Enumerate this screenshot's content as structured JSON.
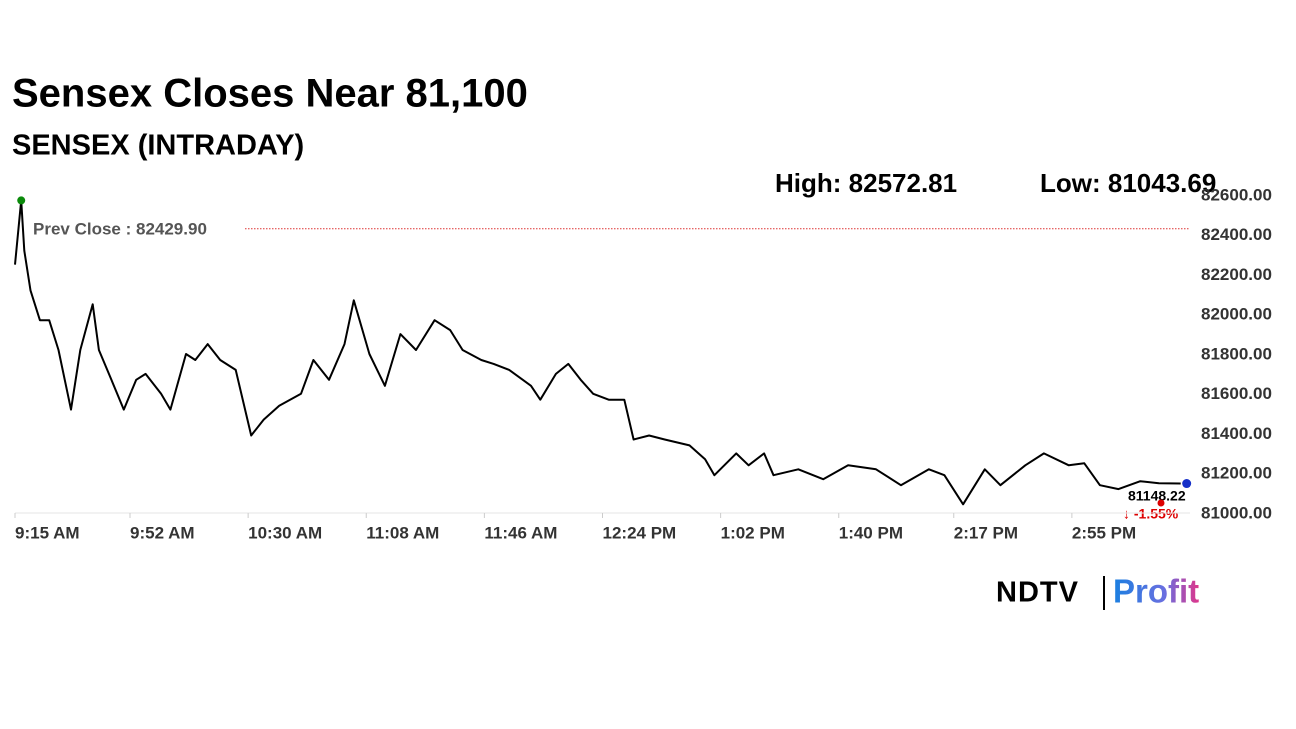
{
  "chart_data": {
    "type": "line",
    "title": "Sensex Closes Near 81,100",
    "subtitle": "SENSEX (INTRADAY)",
    "high_label": "High: 82572.81",
    "low_label": "Low: 81043.69",
    "prev_close": {
      "value": 82429.9,
      "label": "Prev Close : 82429.90"
    },
    "last_label": "81148.22",
    "change_label": "↓ -1.55%",
    "color": "#000000",
    "x": [
      0,
      2,
      3,
      5,
      8,
      11,
      14,
      18,
      21,
      25,
      27,
      31,
      35,
      39,
      42,
      47,
      50,
      55,
      58,
      62,
      66,
      71,
      76,
      80,
      85,
      92,
      96,
      101,
      106,
      109,
      114,
      119,
      124,
      129,
      135,
      140,
      144,
      150,
      154,
      159,
      166,
      169,
      174,
      178,
      182,
      186,
      191,
      196,
      199,
      204,
      209,
      217,
      222,
      225,
      232,
      236,
      241,
      244,
      252,
      260,
      268,
      277,
      285,
      294,
      299,
      305,
      312,
      317,
      325,
      331,
      339,
      344,
      349,
      355,
      362,
      368,
      375
    ],
    "values": [
      82250,
      82572.81,
      82320,
      82120,
      81970,
      81970,
      81820,
      81520,
      81820,
      82050,
      81820,
      81670,
      81520,
      81670,
      81700,
      81600,
      81520,
      81800,
      81770,
      81850,
      81770,
      81720,
      81390,
      81470,
      81540,
      81600,
      81770,
      81670,
      81850,
      82070,
      81800,
      81640,
      81900,
      81820,
      81970,
      81920,
      81820,
      81770,
      81750,
      81720,
      81640,
      81570,
      81700,
      81750,
      81670,
      81600,
      81570,
      81570,
      81370,
      81390,
      81370,
      81340,
      81270,
      81190,
      81300,
      81240,
      81300,
      81190,
      81220,
      81170,
      81240,
      81220,
      81140,
      81220,
      81190,
      81043.69,
      81220,
      81140,
      81240,
      81300,
      81240,
      81250,
      81140,
      81120,
      81160,
      81150,
      81148.22
    ],
    "xlim": [
      0,
      378
    ],
    "xticks": [
      {
        "value": 0,
        "label": "9:15 AM"
      },
      {
        "value": 37,
        "label": "9:52 AM"
      },
      {
        "value": 75,
        "label": "10:30 AM"
      },
      {
        "value": 113,
        "label": "11:08 AM"
      },
      {
        "value": 151,
        "label": "11:46 AM"
      },
      {
        "value": 189,
        "label": "12:24 PM"
      },
      {
        "value": 227,
        "label": "1:02 PM"
      },
      {
        "value": 265,
        "label": "1:40 PM"
      },
      {
        "value": 302,
        "label": "2:17 PM"
      },
      {
        "value": 340,
        "label": "2:55 PM"
      }
    ],
    "ylim": [
      81000,
      82600
    ],
    "yticks": [
      {
        "value": 81000,
        "label": "81000.00"
      },
      {
        "value": 81200,
        "label": "81200.00"
      },
      {
        "value": 81400,
        "label": "81400.00"
      },
      {
        "value": 81600,
        "label": "81600.00"
      },
      {
        "value": 81800,
        "label": "81800.00"
      },
      {
        "value": 82000,
        "label": "82000.00"
      },
      {
        "value": 82200,
        "label": "82200.00"
      },
      {
        "value": 82400,
        "label": "82400.00"
      },
      {
        "value": 82600,
        "label": "82600.00"
      }
    ]
  },
  "brand": {
    "left": "NDTV",
    "right": "Profit"
  }
}
